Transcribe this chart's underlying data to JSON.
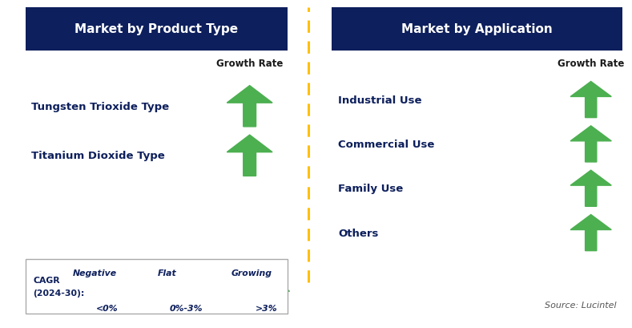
{
  "left_header": "Market by Product Type",
  "right_header": "Market by Application",
  "left_items": [
    "Tungsten Trioxide Type",
    "Titanium Dioxide Type"
  ],
  "right_items": [
    "Industrial Use",
    "Commercial Use",
    "Family Use",
    "Others"
  ],
  "growth_rate_label": "Growth Rate",
  "header_bg_color": "#0d1f5c",
  "header_text_color": "#ffffff",
  "item_text_color": "#0d1f5c",
  "growth_rate_color": "#1a1a1a",
  "arrow_up_color": "#4caf50",
  "arrow_down_color": "#cc0000",
  "arrow_flat_color": "#ffc000",
  "legend_border_color": "#aaaaaa",
  "divider_color": "#ffc000",
  "source_text": "Source: Lucintel",
  "legend_cagr_line1": "CAGR",
  "legend_cagr_line2": "(2024-30):",
  "legend_negative_label": "Negative",
  "legend_negative_value": "<0%",
  "legend_flat_label": "Flat",
  "legend_flat_value": "0%-3%",
  "legend_growing_label": "Growing",
  "legend_growing_value": ">3%",
  "fig_width": 7.89,
  "fig_height": 4.1,
  "dpi": 100
}
